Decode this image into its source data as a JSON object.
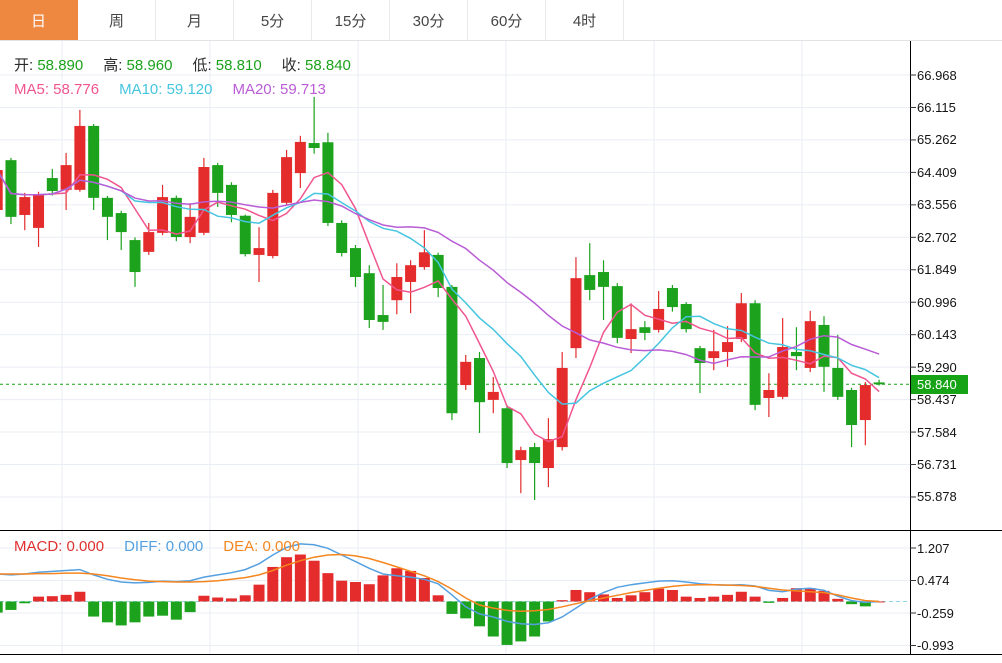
{
  "toolbar": {
    "tabs": [
      {
        "id": "day",
        "label": "日",
        "active": true
      },
      {
        "id": "week",
        "label": "周",
        "active": false
      },
      {
        "id": "month",
        "label": "月",
        "active": false
      },
      {
        "id": "5min",
        "label": "5分",
        "active": false
      },
      {
        "id": "15min",
        "label": "15分",
        "active": false
      },
      {
        "id": "30min",
        "label": "30分",
        "active": false
      },
      {
        "id": "60min",
        "label": "60分",
        "active": false
      },
      {
        "id": "4hour",
        "label": "4时",
        "active": false
      }
    ]
  },
  "indicators": {
    "ohlc": {
      "value_color": "#1ca21c",
      "items": [
        {
          "name": "open",
          "label": "开:",
          "value": "58.890"
        },
        {
          "name": "high",
          "label": "高:",
          "value": "58.960"
        },
        {
          "name": "low",
          "label": "低:",
          "value": "58.810"
        },
        {
          "name": "close",
          "label": "收:",
          "value": "58.840"
        }
      ]
    },
    "ma": {
      "items": [
        {
          "name": "ma5",
          "label": "MA5:",
          "value": "58.776",
          "color": "#f0558f"
        },
        {
          "name": "ma10",
          "label": "MA10:",
          "value": "59.120",
          "color": "#45c5e0"
        },
        {
          "name": "ma20",
          "label": "MA20:",
          "value": "59.713",
          "color": "#b95cd6"
        }
      ]
    },
    "macd": {
      "items": [
        {
          "name": "macd",
          "label": "MACD:",
          "value": "0.000",
          "color": "#e03030"
        },
        {
          "name": "diff",
          "label": "DIFF:",
          "value": "0.000",
          "color": "#54a0e0"
        },
        {
          "name": "dea",
          "label": "DEA:",
          "value": "0.000",
          "color": "#f5861f"
        }
      ]
    }
  },
  "y_axis": {
    "ticks": [
      "66.968",
      "66.115",
      "65.262",
      "64.409",
      "63.556",
      "62.702",
      "61.849",
      "60.996",
      "60.143",
      "59.290",
      "58.437",
      "57.584",
      "56.731",
      "55.878"
    ],
    "badge": {
      "value": "58.840",
      "color": "#16a316"
    }
  },
  "macd_axis": {
    "ticks": [
      "1.207",
      "0.474",
      "-0.259",
      "-0.993"
    ]
  },
  "chart_data": {
    "type": "candlestick",
    "title": "",
    "legend_entries": [
      "MA5",
      "MA10",
      "MA20",
      "MACD",
      "DIFF",
      "DEA"
    ],
    "price_axis": {
      "ticks": [
        66.968,
        66.115,
        65.262,
        64.409,
        63.556,
        62.702,
        61.849,
        60.996,
        60.143,
        59.29,
        58.437,
        57.584,
        56.731,
        55.878
      ],
      "current": 58.84
    },
    "macd_axis_values": [
      1.207,
      0.474,
      -0.259,
      -0.993
    ],
    "ma_periods": [
      5,
      10,
      20
    ],
    "colors": {
      "up": "#e42c2c",
      "down": "#1ca21c",
      "ma5": "#f0558f",
      "ma10": "#45c5e0",
      "ma20": "#b95cd6",
      "diff": "#55a0e0",
      "dea": "#f5861f",
      "price_line": "#16a316",
      "macd_zero_line": "#8fd4e8",
      "grid": "#e9eef5"
    },
    "candles_ohlc": [
      [
        63.42,
        64.55,
        63.35,
        64.47
      ],
      [
        64.73,
        64.79,
        63.05,
        63.24
      ],
      [
        63.29,
        63.87,
        62.89,
        63.76
      ],
      [
        62.95,
        63.9,
        62.45,
        63.82
      ],
      [
        64.26,
        64.5,
        63.8,
        63.92
      ],
      [
        63.95,
        64.92,
        63.42,
        64.6
      ],
      [
        63.95,
        66.05,
        63.9,
        65.63
      ],
      [
        65.63,
        65.68,
        63.42,
        63.74
      ],
      [
        63.74,
        63.79,
        62.63,
        63.24
      ],
      [
        63.34,
        63.4,
        62.37,
        62.84
      ],
      [
        62.63,
        62.7,
        61.4,
        61.79
      ],
      [
        62.32,
        63.08,
        62.24,
        62.84
      ],
      [
        62.82,
        64.08,
        62.76,
        63.76
      ],
      [
        63.74,
        63.8,
        62.6,
        62.71
      ],
      [
        62.71,
        63.6,
        62.55,
        63.24
      ],
      [
        62.82,
        64.79,
        62.76,
        64.55
      ],
      [
        64.6,
        64.66,
        63.5,
        63.87
      ],
      [
        64.08,
        64.15,
        63.1,
        63.29
      ],
      [
        63.27,
        63.3,
        62.2,
        62.26
      ],
      [
        62.24,
        62.97,
        61.53,
        62.42
      ],
      [
        62.21,
        63.95,
        62.15,
        63.87
      ],
      [
        63.61,
        65.0,
        63.55,
        64.81
      ],
      [
        64.39,
        65.37,
        64.0,
        65.21
      ],
      [
        65.18,
        66.39,
        64.9,
        65.05
      ],
      [
        65.2,
        65.45,
        63.0,
        63.08
      ],
      [
        63.08,
        63.15,
        62.2,
        62.29
      ],
      [
        62.42,
        62.5,
        61.4,
        61.66
      ],
      [
        61.76,
        61.97,
        60.32,
        60.53
      ],
      [
        60.66,
        61.45,
        60.27,
        60.48
      ],
      [
        61.05,
        62.02,
        60.68,
        61.66
      ],
      [
        61.53,
        62.1,
        60.71,
        61.97
      ],
      [
        61.92,
        62.89,
        61.85,
        62.31
      ],
      [
        62.24,
        62.3,
        61.13,
        61.37
      ],
      [
        61.4,
        61.45,
        57.9,
        58.08
      ],
      [
        58.82,
        59.61,
        58.69,
        59.43
      ],
      [
        59.53,
        59.69,
        57.56,
        58.37
      ],
      [
        58.43,
        59.03,
        58.08,
        58.64
      ],
      [
        58.21,
        58.3,
        56.64,
        56.77
      ],
      [
        56.85,
        57.2,
        55.98,
        57.11
      ],
      [
        57.19,
        57.3,
        55.8,
        56.77
      ],
      [
        56.64,
        57.95,
        56.14,
        57.4
      ],
      [
        57.19,
        59.69,
        57.1,
        59.27
      ],
      [
        59.79,
        62.18,
        59.53,
        61.63
      ],
      [
        61.71,
        62.55,
        61.05,
        61.32
      ],
      [
        61.79,
        62.1,
        60.53,
        61.4
      ],
      [
        61.42,
        61.5,
        59.92,
        60.06
      ],
      [
        60.03,
        60.97,
        59.66,
        60.29
      ],
      [
        60.34,
        60.5,
        60.0,
        60.19
      ],
      [
        60.27,
        61.29,
        60.2,
        60.82
      ],
      [
        61.37,
        61.45,
        60.75,
        60.87
      ],
      [
        60.95,
        61.0,
        60.2,
        60.29
      ],
      [
        59.79,
        59.85,
        58.61,
        59.4
      ],
      [
        59.53,
        60.27,
        59.21,
        59.71
      ],
      [
        59.69,
        60.37,
        59.3,
        59.95
      ],
      [
        60.03,
        61.24,
        59.95,
        60.97
      ],
      [
        60.97,
        61.05,
        58.16,
        58.3
      ],
      [
        58.48,
        59.13,
        57.98,
        58.69
      ],
      [
        58.51,
        60.58,
        58.45,
        59.82
      ],
      [
        59.69,
        60.34,
        59.21,
        59.58
      ],
      [
        59.27,
        60.77,
        59.16,
        60.5
      ],
      [
        60.4,
        60.63,
        58.64,
        59.3
      ],
      [
        59.27,
        60.14,
        58.43,
        58.51
      ],
      [
        58.69,
        58.75,
        57.19,
        57.77
      ],
      [
        57.9,
        58.9,
        57.24,
        58.82
      ],
      [
        58.89,
        58.96,
        58.81,
        58.84
      ]
    ],
    "macd": {
      "hist": [
        -0.25,
        -0.19,
        -0.04,
        0.11,
        0.12,
        0.15,
        0.22,
        -0.34,
        -0.47,
        -0.54,
        -0.47,
        -0.34,
        -0.32,
        -0.41,
        -0.24,
        0.13,
        0.09,
        0.07,
        0.14,
        0.38,
        0.78,
        1.0,
        1.06,
        0.92,
        0.64,
        0.47,
        0.44,
        0.39,
        0.59,
        0.75,
        0.69,
        0.53,
        0.14,
        -0.28,
        -0.38,
        -0.56,
        -0.79,
        -0.98,
        -0.9,
        -0.79,
        -0.45,
        0.03,
        0.26,
        0.21,
        0.16,
        0.08,
        0.14,
        0.21,
        0.29,
        0.26,
        0.11,
        0.08,
        0.11,
        0.15,
        0.22,
        0.11,
        -0.03,
        0.08,
        0.3,
        0.3,
        0.24,
        0.06,
        -0.06,
        -0.11,
        0.0
      ],
      "diff": [
        0.62,
        0.6,
        0.62,
        0.66,
        0.68,
        0.7,
        0.72,
        0.6,
        0.5,
        0.44,
        0.42,
        0.43,
        0.46,
        0.45,
        0.47,
        0.55,
        0.6,
        0.65,
        0.72,
        0.85,
        1.05,
        1.22,
        1.3,
        1.28,
        1.2,
        1.05,
        0.9,
        0.75,
        0.62,
        0.58,
        0.55,
        0.5,
        0.4,
        0.15,
        -0.12,
        -0.28,
        -0.35,
        -0.45,
        -0.5,
        -0.52,
        -0.48,
        -0.35,
        -0.15,
        0.05,
        0.2,
        0.32,
        0.38,
        0.42,
        0.46,
        0.47,
        0.44,
        0.4,
        0.38,
        0.37,
        0.38,
        0.35,
        0.25,
        0.22,
        0.28,
        0.3,
        0.25,
        0.12,
        0.02,
        -0.02,
        0.0
      ],
      "dea": [
        0.62,
        0.62,
        0.62,
        0.63,
        0.63,
        0.64,
        0.64,
        0.62,
        0.58,
        0.53,
        0.49,
        0.46,
        0.45,
        0.44,
        0.44,
        0.45,
        0.47,
        0.5,
        0.54,
        0.6,
        0.7,
        0.82,
        0.92,
        1.0,
        1.05,
        1.06,
        1.03,
        0.97,
        0.88,
        0.78,
        0.68,
        0.58,
        0.45,
        0.28,
        0.08,
        -0.08,
        -0.15,
        -0.2,
        -0.22,
        -0.21,
        -0.18,
        -0.12,
        -0.05,
        0.02,
        0.08,
        0.14,
        0.2,
        0.25,
        0.3,
        0.34,
        0.37,
        0.38,
        0.38,
        0.37,
        0.36,
        0.34,
        0.3,
        0.26,
        0.24,
        0.22,
        0.2,
        0.15,
        0.08,
        0.02,
        0.0
      ]
    }
  }
}
